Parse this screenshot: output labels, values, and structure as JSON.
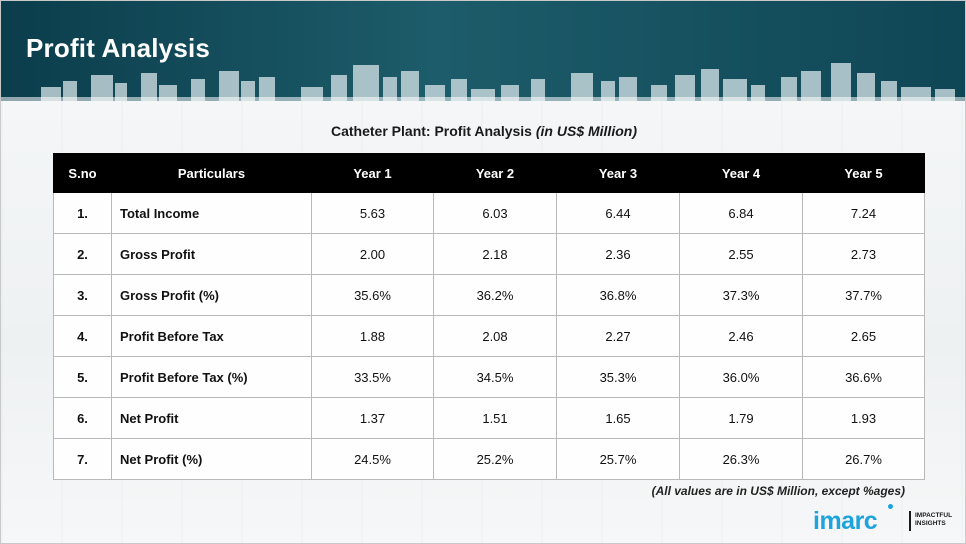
{
  "header": {
    "title": "Profit Analysis"
  },
  "table": {
    "caption": "Catheter Plant: Profit Analysis",
    "caption_unit": "(in US$ Million)",
    "columns": [
      "S.no",
      "Particulars",
      "Year 1",
      "Year 2",
      "Year 3",
      "Year 4",
      "Year 5"
    ],
    "rows": [
      [
        "1.",
        "Total Income",
        "5.63",
        "6.03",
        "6.44",
        "6.84",
        "7.24"
      ],
      [
        "2.",
        "Gross Profit",
        "2.00",
        "2.18",
        "2.36",
        "2.55",
        "2.73"
      ],
      [
        "3.",
        "Gross Profit (%)",
        "35.6%",
        "36.2%",
        "36.8%",
        "37.3%",
        "37.7%"
      ],
      [
        "4.",
        "Profit Before Tax",
        "1.88",
        "2.08",
        "2.27",
        "2.46",
        "2.65"
      ],
      [
        "5.",
        "Profit Before Tax (%)",
        "33.5%",
        "34.5%",
        "35.3%",
        "36.0%",
        "36.6%"
      ],
      [
        "6.",
        "Net Profit",
        "1.37",
        "1.51",
        "1.65",
        "1.79",
        "1.93"
      ],
      [
        "7.",
        "Net Profit (%)",
        "24.5%",
        "25.2%",
        "25.7%",
        "26.3%",
        "26.7%"
      ]
    ]
  },
  "footnote": "(All values are in US$ Million, except %ages)",
  "logo": {
    "word": "imarc",
    "tagline": "IMPACTFUL INSIGHTS"
  },
  "colors": {
    "header": "#0b3d4c",
    "table_header": "#000000",
    "brand": "#1fa3dd"
  }
}
